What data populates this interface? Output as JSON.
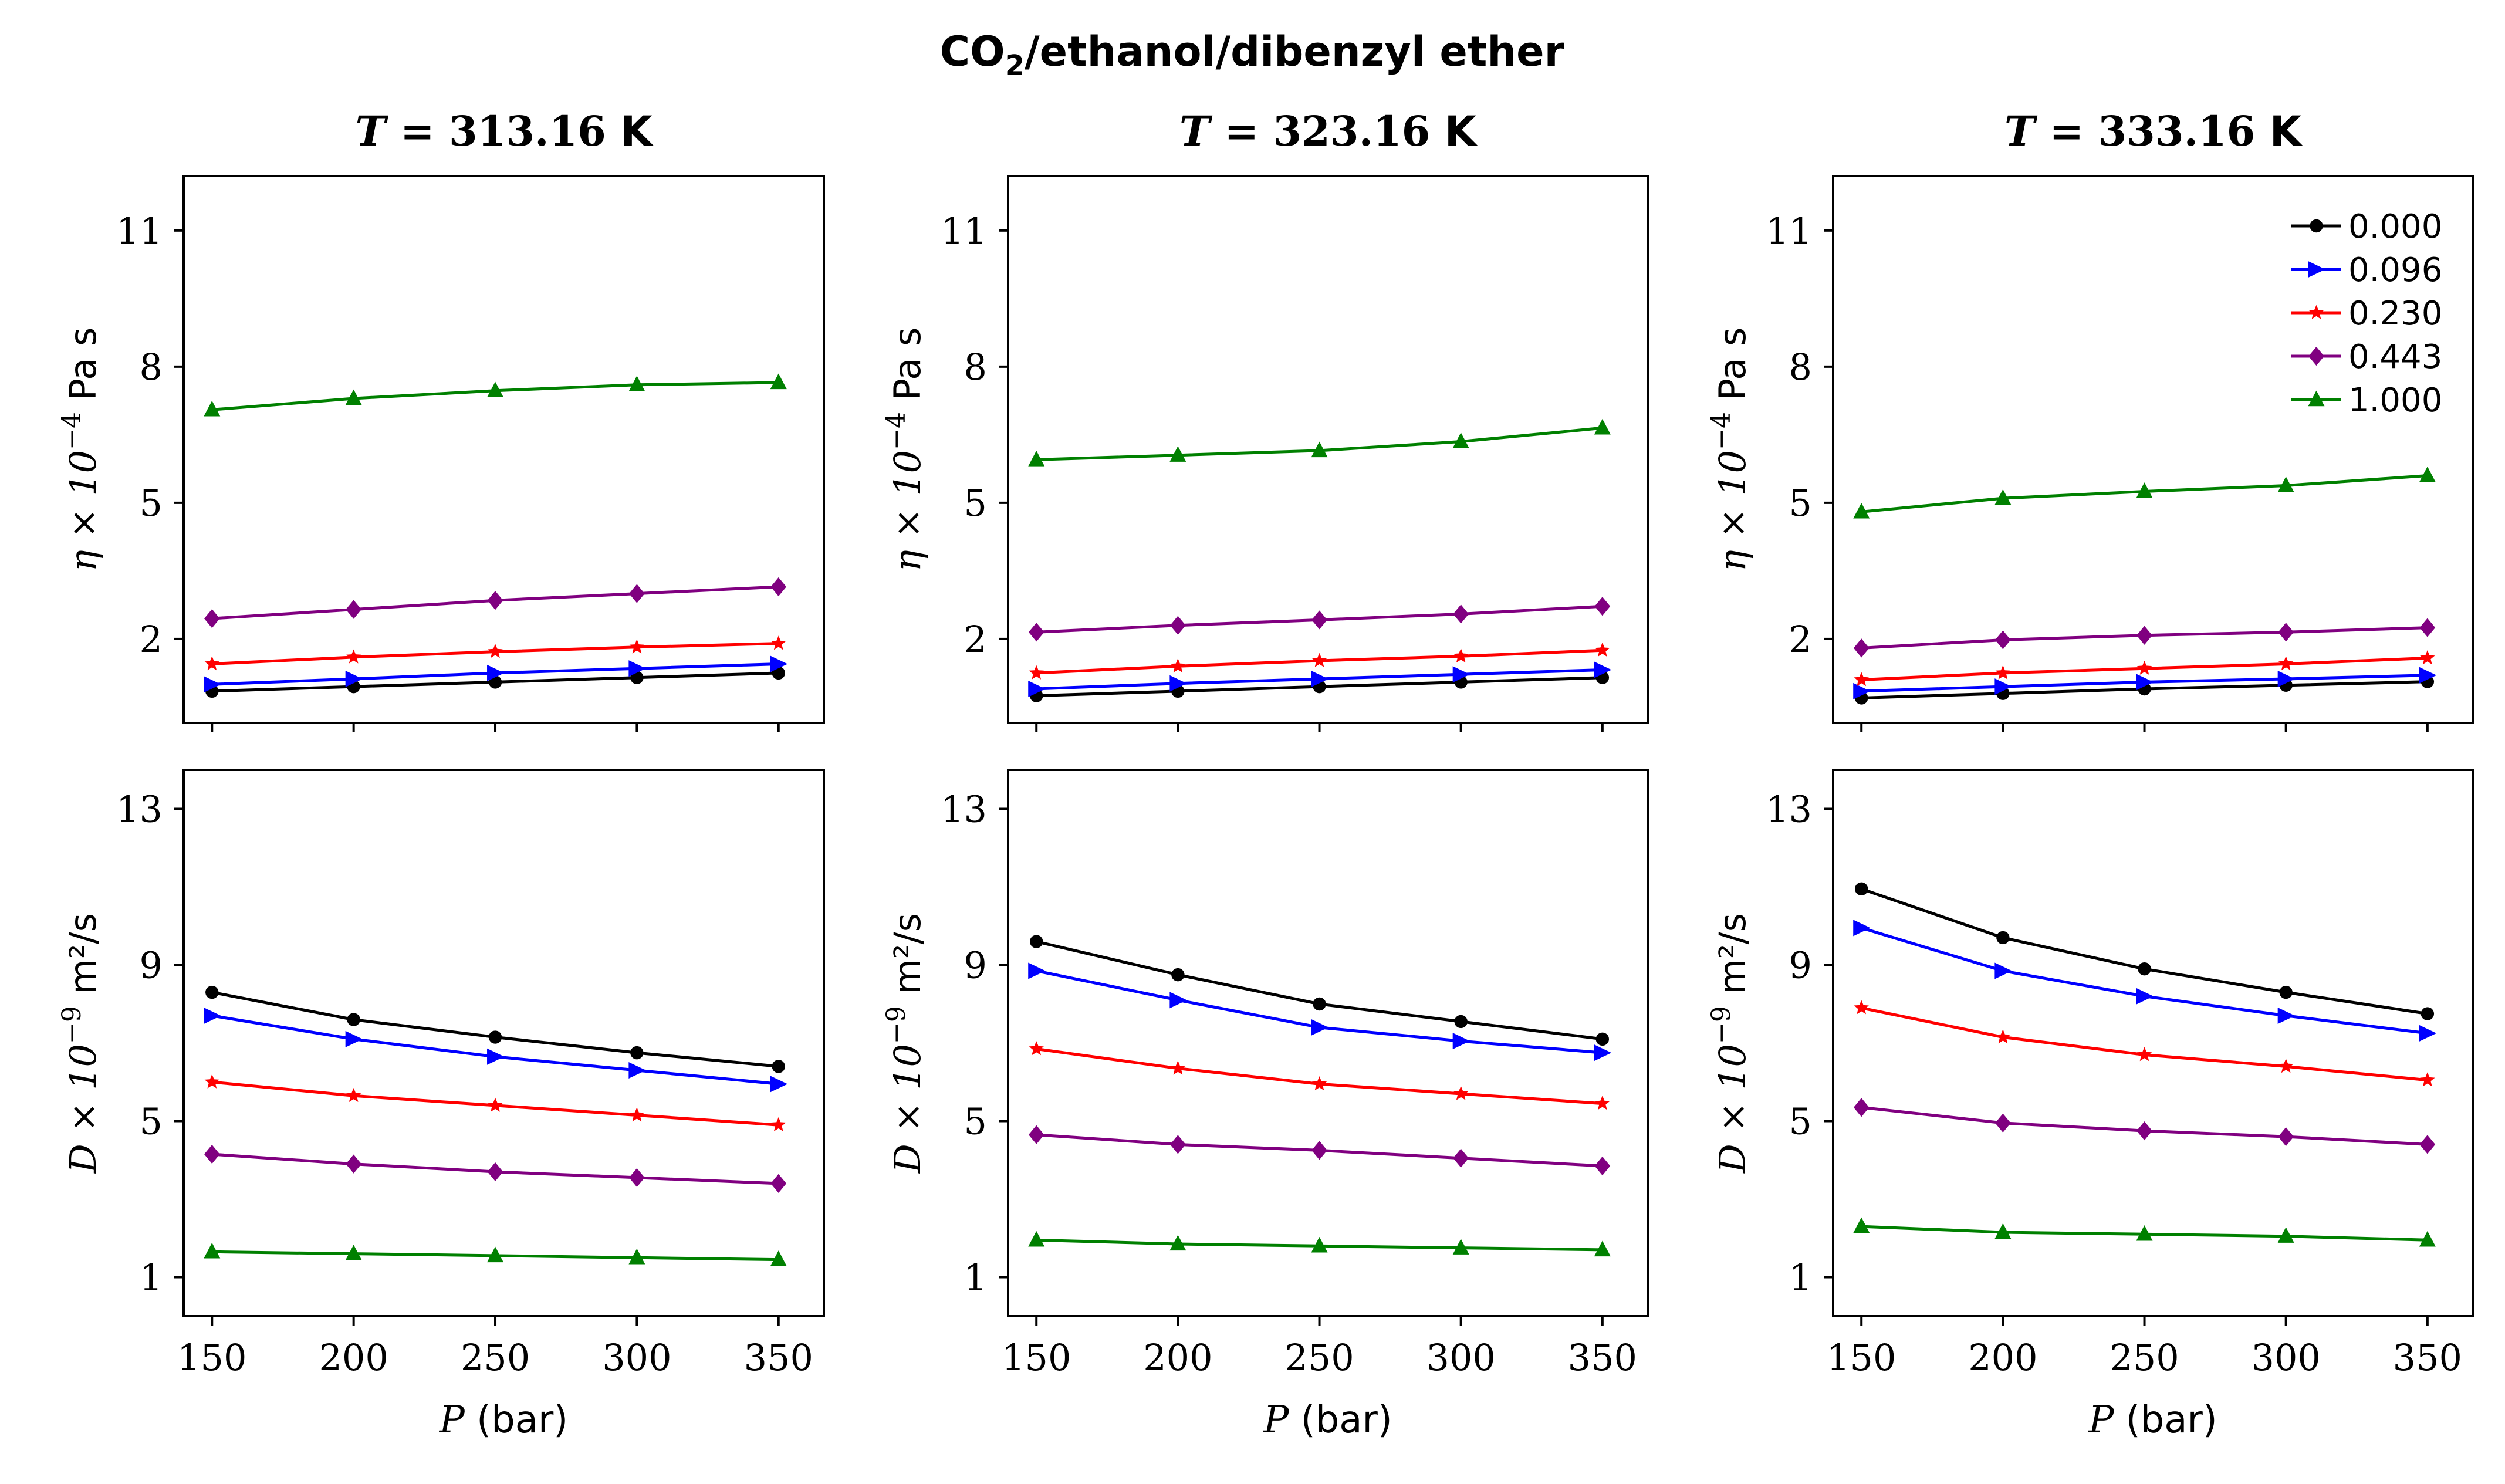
{
  "figure": {
    "suptitle_main": "CO",
    "suptitle_sub": "2",
    "suptitle_rest": "/ethanol/dibenzyl ether"
  },
  "legend": {
    "placement": "top-right of third top panel",
    "entries": [
      "0.000",
      "0.096",
      "0.230",
      "0.443",
      "1.000"
    ]
  },
  "chart_data": [
    {
      "type": "line",
      "panel": "viscosity T1",
      "title_var": "T",
      "title_value": "= 313.16",
      "title_unit": "K",
      "xlabel_var": "P",
      "xlabel_unit": "(bar)",
      "ylabel_var": "η × 10",
      "ylabel_exp": "−4",
      "ylabel_unit": "Pa s",
      "x": [
        150,
        200,
        250,
        300,
        350
      ],
      "xlim": [
        140,
        366
      ],
      "ylim": [
        0.15,
        12.2
      ],
      "xticks": [
        "150",
        "200",
        "250",
        "300",
        "350"
      ],
      "yticks": [
        [
          "2",
          2
        ],
        [
          "5",
          5
        ],
        [
          "8",
          8
        ],
        [
          "11",
          11
        ]
      ],
      "series": [
        {
          "name": "0.000",
          "color": "#000000",
          "marker": "circle",
          "values": [
            0.85,
            0.95,
            1.05,
            1.15,
            1.25
          ]
        },
        {
          "name": "0.096",
          "color": "#0000ff",
          "marker": "triangle-right",
          "values": [
            1.0,
            1.12,
            1.25,
            1.35,
            1.45
          ]
        },
        {
          "name": "0.230",
          "color": "#ff0000",
          "marker": "star",
          "values": [
            1.45,
            1.6,
            1.72,
            1.82,
            1.9
          ]
        },
        {
          "name": "0.443",
          "color": "#800080",
          "marker": "diamond",
          "values": [
            2.45,
            2.65,
            2.85,
            3.0,
            3.15
          ]
        },
        {
          "name": "1.000",
          "color": "#008000",
          "marker": "triangle-up",
          "values": [
            7.05,
            7.3,
            7.47,
            7.6,
            7.65
          ]
        }
      ]
    },
    {
      "type": "line",
      "panel": "viscosity T2",
      "title_var": "T",
      "title_value": "= 323.16",
      "title_unit": "K",
      "xlabel_var": "P",
      "xlabel_unit": "(bar)",
      "ylabel_var": "η × 10",
      "ylabel_exp": "−4",
      "ylabel_unit": "Pa s",
      "x": [
        150,
        200,
        250,
        300,
        350
      ],
      "xlim": [
        140,
        366
      ],
      "ylim": [
        0.15,
        12.2
      ],
      "xticks": [
        "150",
        "200",
        "250",
        "300",
        "350"
      ],
      "yticks": [
        [
          "2",
          2
        ],
        [
          "5",
          5
        ],
        [
          "8",
          8
        ],
        [
          "11",
          11
        ]
      ],
      "series": [
        {
          "name": "0.000",
          "color": "#000000",
          "marker": "circle",
          "values": [
            0.75,
            0.85,
            0.95,
            1.05,
            1.15
          ]
        },
        {
          "name": "0.096",
          "color": "#0000ff",
          "marker": "triangle-right",
          "values": [
            0.9,
            1.02,
            1.12,
            1.22,
            1.32
          ]
        },
        {
          "name": "0.230",
          "color": "#ff0000",
          "marker": "star",
          "values": [
            1.25,
            1.4,
            1.52,
            1.62,
            1.75
          ]
        },
        {
          "name": "0.443",
          "color": "#800080",
          "marker": "diamond",
          "values": [
            2.15,
            2.3,
            2.42,
            2.55,
            2.72
          ]
        },
        {
          "name": "1.000",
          "color": "#008000",
          "marker": "triangle-up",
          "values": [
            5.95,
            6.05,
            6.15,
            6.35,
            6.65
          ]
        }
      ]
    },
    {
      "type": "line",
      "panel": "viscosity T3",
      "title_var": "T",
      "title_value": "= 333.16",
      "title_unit": "K",
      "xlabel_var": "P",
      "xlabel_unit": "(bar)",
      "ylabel_var": "η × 10",
      "ylabel_exp": "−4",
      "ylabel_unit": "Pa s",
      "x": [
        150,
        200,
        250,
        300,
        350
      ],
      "xlim": [
        140,
        366
      ],
      "ylim": [
        0.15,
        12.2
      ],
      "xticks": [
        "150",
        "200",
        "250",
        "300",
        "350"
      ],
      "yticks": [
        [
          "2",
          2
        ],
        [
          "5",
          5
        ],
        [
          "8",
          8
        ],
        [
          "11",
          11
        ]
      ],
      "series": [
        {
          "name": "0.000",
          "color": "#000000",
          "marker": "circle",
          "values": [
            0.7,
            0.8,
            0.9,
            0.98,
            1.06
          ]
        },
        {
          "name": "0.096",
          "color": "#0000ff",
          "marker": "triangle-right",
          "values": [
            0.85,
            0.95,
            1.05,
            1.12,
            1.2
          ]
        },
        {
          "name": "0.230",
          "color": "#ff0000",
          "marker": "star",
          "values": [
            1.1,
            1.25,
            1.35,
            1.45,
            1.58
          ]
        },
        {
          "name": "0.443",
          "color": "#800080",
          "marker": "diamond",
          "values": [
            1.8,
            1.98,
            2.08,
            2.15,
            2.25
          ]
        },
        {
          "name": "1.000",
          "color": "#008000",
          "marker": "triangle-up",
          "values": [
            4.8,
            5.1,
            5.25,
            5.38,
            5.6
          ]
        }
      ]
    },
    {
      "type": "line",
      "panel": "diffusion T1",
      "xlabel_var": "P",
      "xlabel_unit": "(bar)",
      "ylabel_var": "D × 10",
      "ylabel_exp": "−9",
      "ylabel_unit": "m²/s",
      "x": [
        150,
        200,
        250,
        300,
        350
      ],
      "xlim": [
        140,
        366
      ],
      "ylim": [
        0.0,
        14.0
      ],
      "xticks": [
        "150",
        "200",
        "250",
        "300",
        "350"
      ],
      "yticks": [
        [
          "1",
          1
        ],
        [
          "5",
          5
        ],
        [
          "9",
          9
        ],
        [
          "13",
          13
        ]
      ],
      "series": [
        {
          "name": "0.000",
          "color": "#000000",
          "marker": "circle",
          "values": [
            8.3,
            7.6,
            7.15,
            6.75,
            6.4
          ]
        },
        {
          "name": "0.096",
          "color": "#0000ff",
          "marker": "triangle-right",
          "values": [
            7.7,
            7.1,
            6.65,
            6.3,
            5.95
          ]
        },
        {
          "name": "0.230",
          "color": "#ff0000",
          "marker": "star",
          "values": [
            6.0,
            5.65,
            5.4,
            5.15,
            4.9
          ]
        },
        {
          "name": "0.443",
          "color": "#800080",
          "marker": "diamond",
          "values": [
            4.15,
            3.9,
            3.7,
            3.55,
            3.4
          ]
        },
        {
          "name": "1.000",
          "color": "#008000",
          "marker": "triangle-up",
          "values": [
            1.65,
            1.6,
            1.55,
            1.5,
            1.45
          ]
        }
      ]
    },
    {
      "type": "line",
      "panel": "diffusion T2",
      "xlabel_var": "P",
      "xlabel_unit": "(bar)",
      "ylabel_var": "D × 10",
      "ylabel_exp": "−9",
      "ylabel_unit": "m²/s",
      "x": [
        150,
        200,
        250,
        300,
        350
      ],
      "xlim": [
        140,
        366
      ],
      "ylim": [
        0.0,
        14.0
      ],
      "xticks": [
        "150",
        "200",
        "250",
        "300",
        "350"
      ],
      "yticks": [
        [
          "1",
          1
        ],
        [
          "5",
          5
        ],
        [
          "9",
          9
        ],
        [
          "13",
          13
        ]
      ],
      "series": [
        {
          "name": "0.000",
          "color": "#000000",
          "marker": "circle",
          "values": [
            9.6,
            8.75,
            8.0,
            7.55,
            7.1
          ]
        },
        {
          "name": "0.096",
          "color": "#0000ff",
          "marker": "triangle-right",
          "values": [
            8.85,
            8.1,
            7.4,
            7.05,
            6.75
          ]
        },
        {
          "name": "0.230",
          "color": "#ff0000",
          "marker": "star",
          "values": [
            6.85,
            6.35,
            5.95,
            5.7,
            5.45
          ]
        },
        {
          "name": "0.443",
          "color": "#800080",
          "marker": "diamond",
          "values": [
            4.65,
            4.4,
            4.25,
            4.05,
            3.85
          ]
        },
        {
          "name": "1.000",
          "color": "#008000",
          "marker": "triangle-up",
          "values": [
            1.95,
            1.85,
            1.8,
            1.75,
            1.7
          ]
        }
      ]
    },
    {
      "type": "line",
      "panel": "diffusion T3",
      "xlabel_var": "P",
      "xlabel_unit": "(bar)",
      "ylabel_var": "D × 10",
      "ylabel_exp": "−9",
      "ylabel_unit": "m²/s",
      "x": [
        150,
        200,
        250,
        300,
        350
      ],
      "xlim": [
        140,
        366
      ],
      "ylim": [
        0.0,
        14.0
      ],
      "xticks": [
        "150",
        "200",
        "250",
        "300",
        "350"
      ],
      "yticks": [
        [
          "1",
          1
        ],
        [
          "5",
          5
        ],
        [
          "9",
          9
        ],
        [
          "13",
          13
        ]
      ],
      "series": [
        {
          "name": "0.000",
          "color": "#000000",
          "marker": "circle",
          "values": [
            10.95,
            9.7,
            8.9,
            8.3,
            7.75
          ]
        },
        {
          "name": "0.096",
          "color": "#0000ff",
          "marker": "triangle-right",
          "values": [
            9.95,
            8.85,
            8.2,
            7.7,
            7.25
          ]
        },
        {
          "name": "0.230",
          "color": "#ff0000",
          "marker": "star",
          "values": [
            7.9,
            7.15,
            6.7,
            6.4,
            6.05
          ]
        },
        {
          "name": "0.443",
          "color": "#800080",
          "marker": "diamond",
          "values": [
            5.35,
            4.95,
            4.75,
            4.6,
            4.4
          ]
        },
        {
          "name": "1.000",
          "color": "#008000",
          "marker": "triangle-up",
          "values": [
            2.3,
            2.15,
            2.1,
            2.05,
            1.95
          ]
        }
      ]
    }
  ]
}
